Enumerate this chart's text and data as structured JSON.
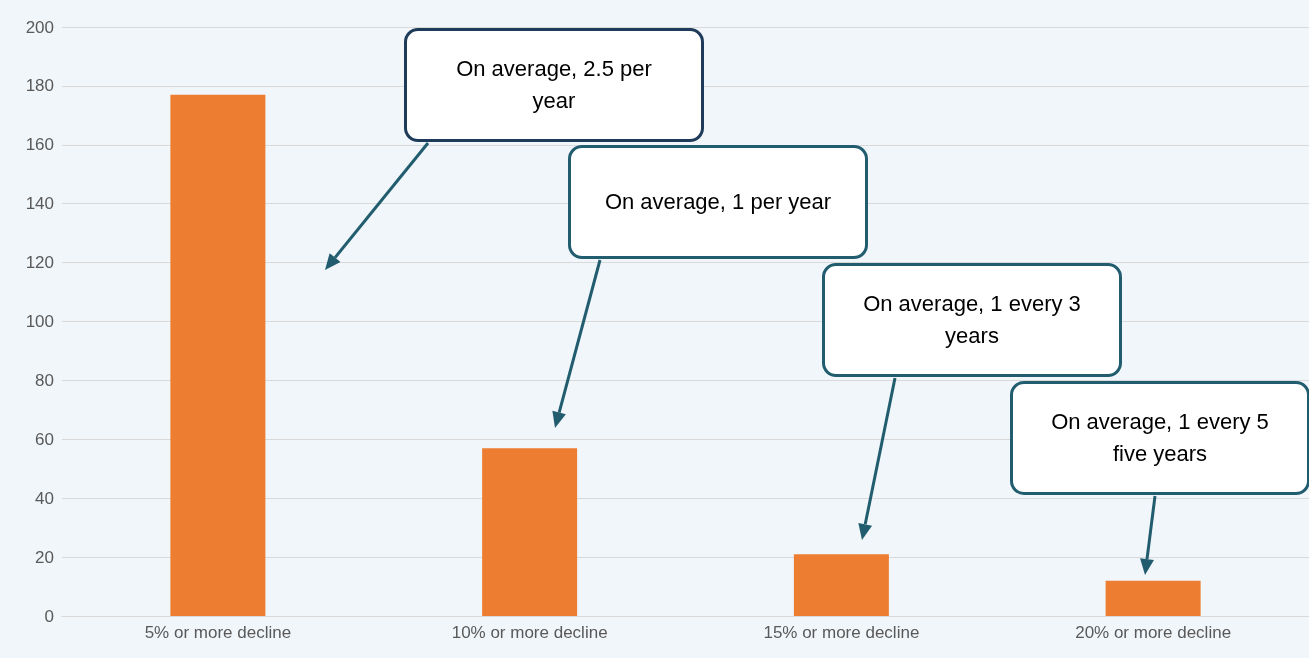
{
  "chart_data": {
    "type": "bar",
    "categories": [
      "5% or more decline",
      "10% or more decline",
      "15% or more decline",
      "20% or more decline"
    ],
    "values": [
      177,
      57,
      21,
      12
    ],
    "color": "#ed7d31",
    "ylim": [
      0,
      200
    ],
    "yticks": [
      0,
      20,
      40,
      60,
      80,
      100,
      120,
      140,
      160,
      180,
      200
    ],
    "grid": "y",
    "annotations": [
      "On average, 2.5 per year",
      "On average, 1 per year",
      "On average, 1 every 3 years",
      "On average, 1 every 5 five years"
    ]
  }
}
